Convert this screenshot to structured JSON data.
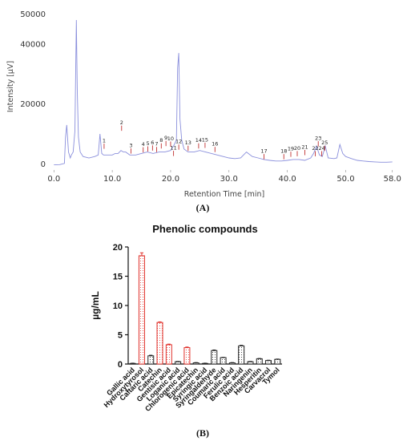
{
  "colors": {
    "trace": "#8a8fdc",
    "peak_marker": "#c03030",
    "bar_red": "#e0302a",
    "bar_black": "#222222"
  },
  "chart_data": [
    {
      "type": "line",
      "panel_label": "(A)",
      "xlabel": "Retention Time [min]",
      "ylabel": "Intensity [µV]",
      "xlim": [
        -1,
        59
      ],
      "ylim": [
        -2000,
        52000
      ],
      "x_ticks": [
        "0.0",
        "10.0",
        "20.0",
        "30.0",
        "40.0",
        "50.0",
        "58.0"
      ],
      "y_ticks": [
        "0",
        "20000",
        "40000",
        "50000"
      ],
      "series": [
        {
          "x": [
            0,
            1,
            1.8,
            2,
            2.2,
            2.5,
            2.8,
            3,
            3.3,
            3.6,
            3.85,
            4,
            4.2,
            4.5,
            5,
            6,
            7,
            7.6,
            7.9,
            8.2,
            8.5,
            9,
            10,
            10.5,
            11,
            11.5,
            11.9,
            12.3,
            13,
            14,
            15,
            16,
            17,
            18,
            19,
            20,
            20.5,
            21,
            21.2,
            21.4,
            21.6,
            21.9,
            22.3,
            23,
            24,
            25,
            26,
            27,
            28,
            29,
            30,
            31,
            32,
            33,
            34,
            35,
            36,
            37,
            38,
            39,
            40,
            41,
            42,
            43,
            44,
            44.5,
            45,
            45.5,
            46,
            46.5,
            47,
            48,
            48.5,
            49,
            49.5,
            50,
            51,
            52,
            53,
            54,
            55,
            56,
            57,
            58
          ],
          "y": [
            -300,
            -200,
            200,
            9000,
            13000,
            4000,
            2000,
            3000,
            4000,
            11000,
            48000,
            25000,
            9000,
            4000,
            2500,
            2000,
            2500,
            3000,
            10000,
            3500,
            3000,
            3000,
            3000,
            3500,
            3500,
            4500,
            4000,
            4000,
            3000,
            3000,
            3500,
            4000,
            3500,
            4000,
            4000,
            4500,
            6000,
            8000,
            32000,
            37000,
            15000,
            8000,
            5000,
            4000,
            4000,
            4500,
            4000,
            3500,
            3000,
            2500,
            2000,
            1800,
            2000,
            4000,
            2500,
            2000,
            1500,
            1200,
            1000,
            1000,
            1200,
            1500,
            1500,
            1200,
            2000,
            3500,
            6000,
            3000,
            2500,
            6000,
            2000,
            1800,
            2000,
            6500,
            3500,
            2500,
            1800,
            1200,
            1000,
            800,
            700,
            600,
            600,
            700
          ],
          "x_unit_note": ""
        }
      ],
      "peak_labels": [
        {
          "label": "1",
          "x": 8.6,
          "y": 7200
        },
        {
          "label": "2",
          "x": 11.6,
          "y": 13200
        },
        {
          "label": "3",
          "x": 13.2,
          "y": 5600
        },
        {
          "label": "4",
          "x": 15.3,
          "y": 6000
        },
        {
          "label": "5",
          "x": 16.1,
          "y": 6300
        },
        {
          "label": "6",
          "x": 16.9,
          "y": 6600
        },
        {
          "label": "7",
          "x": 17.6,
          "y": 6100
        },
        {
          "label": "8",
          "x": 18.4,
          "y": 7300
        },
        {
          "label": "9",
          "x": 19.2,
          "y": 8100
        },
        {
          "label": "10",
          "x": 20.0,
          "y": 7900
        },
        {
          "label": "11",
          "x": 20.5,
          "y": 4800
        },
        {
          "label": "12",
          "x": 21.4,
          "y": 6900
        },
        {
          "label": "13",
          "x": 23.0,
          "y": 6500
        },
        {
          "label": "14",
          "x": 24.8,
          "y": 7300
        },
        {
          "label": "15",
          "x": 25.9,
          "y": 7500
        },
        {
          "label": "16",
          "x": 27.6,
          "y": 6100
        },
        {
          "label": "17",
          "x": 36.0,
          "y": 3700
        },
        {
          "label": "18",
          "x": 39.4,
          "y": 3700
        },
        {
          "label": "19",
          "x": 40.6,
          "y": 4500
        },
        {
          "label": "20",
          "x": 41.7,
          "y": 4700
        },
        {
          "label": "21",
          "x": 43.0,
          "y": 5100
        },
        {
          "label": "22",
          "x": 44.8,
          "y": 4700
        },
        {
          "label": "23",
          "x": 45.3,
          "y": 8000
        },
        {
          "label": "24",
          "x": 45.9,
          "y": 4700
        },
        {
          "label": "25",
          "x": 46.4,
          "y": 6500
        }
      ]
    },
    {
      "type": "bar",
      "panel_label": "(B)",
      "title": "Phenolic compounds",
      "ylabel": "µg/mL",
      "ylim": [
        0,
        20
      ],
      "y_ticks": [
        "0",
        "5",
        "10",
        "15",
        "20"
      ],
      "grid": false,
      "legend": "none",
      "categories": [
        "Gallic acid",
        "Hydroxytyrosol",
        "Caftaric acid",
        "Catechin",
        "Gentisic acid",
        "Loganic acid",
        "Chlorogenic acid",
        "Epicatechin",
        "Syringic acid",
        "Syringaldehyde",
        "Coumaric acid",
        "Ferulic acid",
        "Benzoic acid",
        "Naringenin",
        "Hesperitin",
        "Carvacrol",
        "Tymol"
      ],
      "values": [
        0.1,
        18.5,
        1.4,
        7.1,
        3.3,
        0.4,
        2.8,
        0.2,
        0.1,
        2.3,
        1.1,
        0.2,
        3.1,
        0.4,
        0.9,
        0.6,
        0.8
      ],
      "errors": [
        0.05,
        0.5,
        0.1,
        0.1,
        0.1,
        0.05,
        0.1,
        0.05,
        0.05,
        0.1,
        0.05,
        0.05,
        0.1,
        0.05,
        0.05,
        0.05,
        0.05
      ],
      "highlighted_in_red": [
        "Hydroxytyrosol",
        "Catechin",
        "Gentisic acid",
        "Chlorogenic acid"
      ]
    }
  ]
}
